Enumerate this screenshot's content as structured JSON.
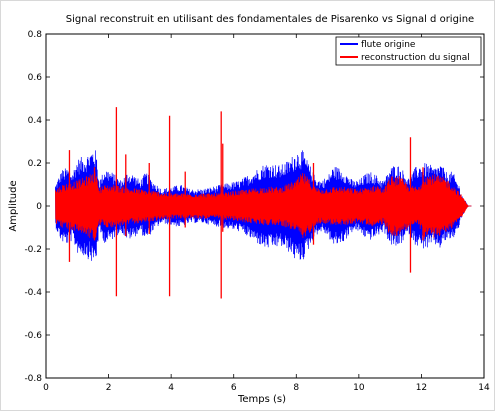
{
  "chart_data": {
    "type": "line",
    "title": "Signal reconstruit en utilisant des fondamentales de Pisarenko vs Signal d origine",
    "xlabel": "Temps (s)",
    "ylabel": "Amplitude",
    "xlim": [
      0,
      14
    ],
    "ylim": [
      -0.8,
      0.8
    ],
    "x_ticks": [
      0,
      2,
      4,
      6,
      8,
      10,
      12,
      14
    ],
    "y_ticks": [
      -0.8,
      -0.6,
      -0.4,
      -0.2,
      0,
      0.2,
      0.4,
      0.6,
      0.8
    ],
    "x_tick_labels": [
      "0",
      "2",
      "4",
      "6",
      "8",
      "10",
      "12",
      "14"
    ],
    "y_tick_labels": [
      "-0.8",
      "-0.6",
      "-0.4",
      "-0.2",
      "0",
      "0.2",
      "0.4",
      "0.6",
      "0.8"
    ],
    "grid": false,
    "legend_position": "top-right",
    "series": [
      {
        "name": "flute origine",
        "color": "#0000ff",
        "style": "dense oscillating signal, amplitude envelope",
        "envelope": {
          "t": [
            0.3,
            0.5,
            0.7,
            0.85,
            1.0,
            1.3,
            1.5,
            1.6,
            1.7,
            1.9,
            2.1,
            2.4,
            2.6,
            2.8,
            3.0,
            3.2,
            3.4,
            3.7,
            4.0,
            4.3,
            4.6,
            5.0,
            5.3,
            5.6,
            5.9,
            6.2,
            6.5,
            6.8,
            7.0,
            7.2,
            7.5,
            7.8,
            8.0,
            8.2,
            8.4,
            8.5,
            8.6,
            8.8,
            9.0,
            9.2,
            9.5,
            9.8,
            10.0,
            10.2,
            10.4,
            10.6,
            10.8,
            11.0,
            11.2,
            11.4,
            11.6,
            11.8,
            12.0,
            12.2,
            12.4,
            12.6,
            12.8,
            13.0,
            13.2,
            13.3,
            13.5
          ],
          "amp": [
            0.1,
            0.17,
            0.18,
            0.16,
            0.22,
            0.24,
            0.27,
            0.26,
            0.12,
            0.18,
            0.16,
            0.12,
            0.16,
            0.15,
            0.12,
            0.16,
            0.12,
            0.08,
            0.09,
            0.1,
            0.08,
            0.08,
            0.09,
            0.1,
            0.11,
            0.12,
            0.15,
            0.18,
            0.2,
            0.2,
            0.19,
            0.22,
            0.26,
            0.26,
            0.2,
            0.17,
            0.14,
            0.12,
            0.14,
            0.19,
            0.17,
            0.12,
            0.12,
            0.15,
            0.16,
            0.14,
            0.12,
            0.18,
            0.2,
            0.17,
            0.13,
            0.18,
            0.2,
            0.2,
            0.18,
            0.2,
            0.16,
            0.16,
            0.1,
            0.05,
            0.0
          ]
        }
      },
      {
        "name": "reconstruction du signal",
        "color": "#ff0000",
        "style": "dense oscillating signal with sharp spikes",
        "envelope": {
          "t": [
            0.3,
            0.5,
            0.7,
            1.0,
            1.3,
            1.5,
            1.6,
            1.7,
            1.9,
            2.2,
            2.5,
            3.0,
            3.5,
            4.0,
            4.5,
            5.0,
            5.5,
            6.0,
            6.5,
            7.0,
            7.5,
            8.0,
            8.2,
            8.4,
            8.6,
            8.8,
            9.2,
            9.5,
            10.0,
            10.3,
            10.6,
            10.8,
            11.0,
            11.3,
            11.6,
            11.9,
            12.1,
            12.4,
            12.8,
            13.0,
            13.3,
            13.5
          ],
          "amp": [
            0.08,
            0.1,
            0.11,
            0.12,
            0.14,
            0.16,
            0.16,
            0.09,
            0.1,
            0.1,
            0.09,
            0.08,
            0.07,
            0.06,
            0.06,
            0.06,
            0.06,
            0.07,
            0.08,
            0.09,
            0.09,
            0.12,
            0.16,
            0.13,
            0.09,
            0.08,
            0.09,
            0.09,
            0.08,
            0.09,
            0.1,
            0.08,
            0.14,
            0.14,
            0.1,
            0.09,
            0.15,
            0.15,
            0.13,
            0.1,
            0.05,
            0.0
          ]
        },
        "spikes": [
          {
            "t": 0.75,
            "top": 0.26,
            "bottom": -0.26
          },
          {
            "t": 1.55,
            "top": 0.18,
            "bottom": -0.16
          },
          {
            "t": 2.25,
            "top": 0.46,
            "bottom": -0.42
          },
          {
            "t": 2.55,
            "top": 0.24,
            "bottom": -0.14
          },
          {
            "t": 3.3,
            "top": 0.2,
            "bottom": -0.13
          },
          {
            "t": 3.95,
            "top": 0.42,
            "bottom": -0.42
          },
          {
            "t": 4.45,
            "top": 0.16,
            "bottom": -0.1
          },
          {
            "t": 5.6,
            "top": 0.44,
            "bottom": -0.43
          },
          {
            "t": 5.65,
            "top": 0.29,
            "bottom": -0.12
          },
          {
            "t": 8.55,
            "top": 0.2,
            "bottom": -0.18
          },
          {
            "t": 11.65,
            "top": 0.32,
            "bottom": -0.31
          },
          {
            "t": 12.05,
            "top": 0.18,
            "bottom": -0.16
          }
        ]
      }
    ]
  }
}
